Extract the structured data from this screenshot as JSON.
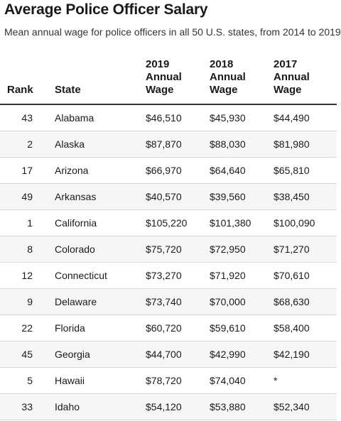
{
  "title": "Average Police Officer Salary",
  "subtitle": "Mean annual wage for police officers in all 50 U.S. states, from 2014 to 2019",
  "columns": {
    "rank": "Rank",
    "state": "State",
    "y2019": [
      "2019",
      "Annual",
      "Wage"
    ],
    "y2018": [
      "2018",
      "Annual",
      "Wage"
    ],
    "y2017": [
      "2017",
      "Annual",
      "Wage"
    ]
  },
  "rows": [
    {
      "rank": "43",
      "state": "Alabama",
      "y2019": "$46,510",
      "y2018": "$45,930",
      "y2017": "$44,490"
    },
    {
      "rank": "2",
      "state": "Alaska",
      "y2019": "$87,870",
      "y2018": "$88,030",
      "y2017": "$81,980"
    },
    {
      "rank": "17",
      "state": "Arizona",
      "y2019": "$66,970",
      "y2018": "$64,640",
      "y2017": "$65,810"
    },
    {
      "rank": "49",
      "state": "Arkansas",
      "y2019": "$40,570",
      "y2018": "$39,560",
      "y2017": "$38,450"
    },
    {
      "rank": "1",
      "state": "California",
      "y2019": "$105,220",
      "y2018": "$101,380",
      "y2017": "$100,090"
    },
    {
      "rank": "8",
      "state": "Colorado",
      "y2019": "$75,720",
      "y2018": "$72,950",
      "y2017": "$71,270"
    },
    {
      "rank": "12",
      "state": "Connecticut",
      "y2019": "$73,270",
      "y2018": "$71,920",
      "y2017": "$70,610"
    },
    {
      "rank": "9",
      "state": "Delaware",
      "y2019": "$73,740",
      "y2018": "$70,000",
      "y2017": "$68,630"
    },
    {
      "rank": "22",
      "state": "Florida",
      "y2019": "$60,720",
      "y2018": "$59,610",
      "y2017": "$58,400"
    },
    {
      "rank": "45",
      "state": "Georgia",
      "y2019": "$44,700",
      "y2018": "$42,990",
      "y2017": "$42,190"
    },
    {
      "rank": "5",
      "state": "Hawaii",
      "y2019": "$78,720",
      "y2018": "$74,040",
      "y2017": "*"
    },
    {
      "rank": "33",
      "state": "Idaho",
      "y2019": "$54,120",
      "y2018": "$53,880",
      "y2017": "$52,340"
    }
  ]
}
